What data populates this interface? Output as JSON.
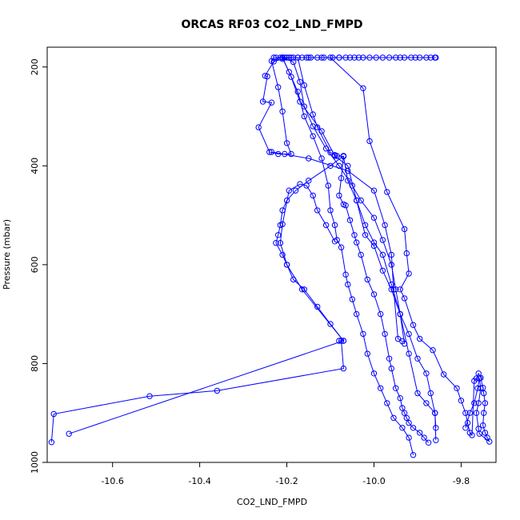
{
  "chart_data": {
    "type": "line",
    "title": "ORCAS RF03 CO2_LND_FMPD",
    "xlabel": "CO2_LND_FMPD",
    "ylabel": "Pressure (mbar)",
    "xlim": [
      -10.75,
      -9.72
    ],
    "ylim": [
      1000,
      160
    ],
    "y_inverted": true,
    "x_ticks": [
      -10.6,
      -10.4,
      -10.2,
      -10.0,
      -9.8
    ],
    "x_tick_labels": [
      "-10.6",
      "-10.4",
      "-10.2",
      "-10.0",
      "-9.8"
    ],
    "y_ticks": [
      200,
      400,
      600,
      800,
      1000
    ],
    "y_tick_labels": [
      "200",
      "400",
      "600",
      "800",
      "1000"
    ],
    "grid": false,
    "legend": "none",
    "color": "#0000ff",
    "marker": "open-circle",
    "series": [
      {
        "x": [
          -10.08,
          -10.12,
          -10.15,
          -10.19,
          -10.21,
          -10.23,
          -10.25,
          -10.245,
          -10.255,
          -10.235,
          -10.265,
          -10.24,
          -10.22,
          -10.205,
          -10.19,
          -10.2,
          -10.21,
          -10.22,
          -10.235,
          -10.215,
          -10.175,
          -10.16,
          -10.14,
          -10.13,
          -10.1,
          -10.09,
          -10.085,
          -10.07,
          -10.06,
          -10.04,
          -10.02,
          -10.0,
          -9.98,
          -9.96,
          -9.94,
          -9.92,
          -9.9,
          -9.88,
          -9.87,
          -9.86,
          -9.858
        ],
        "y": [
          181,
          181,
          181,
          181,
          184,
          189,
          218,
          219,
          270,
          272,
          322,
          372,
          376,
          376,
          376,
          354,
          290,
          241,
          188,
          181,
          181,
          237,
          296,
          322,
          373,
          378,
          380,
          381,
          430,
          470,
          540,
          562,
          612,
          650,
          700,
          740,
          790,
          820,
          860,
          900,
          955
        ]
      },
      {
        "x": [
          -10.2,
          -10.21,
          -10.19,
          -10.17,
          -10.12,
          -10.09,
          -10.06,
          -10.04,
          -10.02,
          -10.0,
          -9.98,
          -9.96,
          -9.94,
          -9.92,
          -9.9,
          -9.88,
          -9.86,
          -9.858
        ],
        "y": [
          181,
          181,
          220,
          270,
          330,
          380,
          400,
          470,
          520,
          555,
          580,
          640,
          700,
          780,
          860,
          880,
          900,
          930
        ]
      },
      {
        "x": [
          -10.225,
          -10.21,
          -10.195,
          -10.175,
          -10.16,
          -10.14,
          -10.12,
          -10.105,
          -10.1,
          -10.09,
          -10.085,
          -10.075,
          -10.065,
          -10.06,
          -10.05,
          -10.04,
          -10.025,
          -10.015,
          -10.0,
          -9.985,
          -9.97,
          -9.955,
          -9.935,
          -9.92,
          -9.91
        ],
        "y": [
          181,
          181,
          210,
          250,
          300,
          340,
          385,
          440,
          490,
          520,
          550,
          565,
          620,
          640,
          670,
          700,
          740,
          780,
          820,
          850,
          880,
          910,
          930,
          950,
          985
        ]
      },
      {
        "x": [
          -10.23,
          -10.21,
          -10.185,
          -10.17,
          -10.16,
          -10.14,
          -10.11,
          -10.08,
          -10.05,
          -10.03,
          -10.0,
          -9.98,
          -9.96,
          -9.95,
          -9.94,
          -9.93
        ],
        "y": [
          181,
          181,
          190,
          230,
          280,
          320,
          365,
          400,
          440,
          470,
          505,
          550,
          600,
          650,
          700,
          760
        ]
      },
      {
        "x": [
          -10.21,
          -10.205,
          -10.195,
          -10.185,
          -10.175,
          -10.165,
          -10.155,
          -10.145,
          -10.13,
          -10.115,
          -10.095,
          -10.08,
          -10.065,
          -10.055,
          -10.045,
          -10.035,
          -10.025,
          -10.01,
          -9.995,
          -9.98,
          -9.965,
          -9.95,
          -9.94,
          -9.93,
          -9.915,
          -9.905,
          -9.895,
          -9.88,
          -9.87,
          -9.86,
          -9.858
        ],
        "y": [
          181,
          181,
          181,
          181,
          181,
          181,
          181,
          181,
          181,
          181,
          181,
          181,
          181,
          181,
          181,
          181,
          181,
          181,
          181,
          181,
          181,
          181,
          181,
          181,
          181,
          181,
          181,
          181,
          181,
          181,
          181
        ]
      },
      {
        "x": [
          -10.1,
          -10.025,
          -10.01,
          -9.97,
          -9.93,
          -9.925,
          -9.92,
          -9.94,
          -9.93,
          -9.91,
          -9.895,
          -9.865,
          -9.84,
          -9.81,
          -9.8,
          -9.79,
          -9.785,
          -9.78,
          -9.775,
          -9.77,
          -9.765,
          -9.76,
          -9.755,
          -9.75,
          -9.748,
          -9.745,
          -9.748,
          -9.75,
          -9.745,
          -9.74,
          -9.735,
          -9.758,
          -9.76,
          -9.765,
          -9.76,
          -9.755,
          -9.758,
          -9.762,
          -9.77,
          -9.78,
          -9.79
        ],
        "y": [
          181,
          243,
          350,
          453,
          528,
          577,
          618,
          650,
          668,
          722,
          750,
          773,
          822,
          850,
          875,
          900,
          920,
          940,
          945,
          835,
          830,
          820,
          829,
          849,
          860,
          880,
          900,
          925,
          940,
          950,
          958,
          942,
          932,
          900,
          880,
          850,
          830,
          850,
          880,
          900,
          930
        ]
      },
      {
        "x": [
          -10.07,
          -10.075,
          -10.08,
          -10.07,
          -10.065,
          -10.055,
          -10.045,
          -10.04,
          -10.03,
          -10.015,
          -10.0,
          -9.985,
          -9.975,
          -9.965,
          -9.96,
          -9.95,
          -9.94,
          -9.935,
          -9.93,
          -9.925,
          -9.92,
          -9.91,
          -9.895,
          -9.885,
          -9.875
        ],
        "y": [
          380,
          425,
          460,
          478,
          480,
          510,
          540,
          555,
          580,
          630,
          660,
          700,
          740,
          790,
          810,
          850,
          870,
          890,
          900,
          910,
          920,
          930,
          940,
          950,
          960
        ]
      },
      {
        "x": [
          -10.07,
          -10.1,
          -10.15,
          -10.18,
          -10.2,
          -10.21,
          -10.215,
          -10.22,
          -10.225,
          -10.21,
          -10.2,
          -10.185,
          -10.16,
          -10.13,
          -10.1,
          -10.07,
          -10.08,
          -10.075,
          -10.07,
          -10.36,
          -10.515,
          -10.735,
          -10.74
        ],
        "y": [
          380,
          400,
          430,
          450,
          470,
          490,
          520,
          540,
          556,
          580,
          600,
          630,
          650,
          685,
          720,
          754,
          754,
          754,
          810,
          855,
          866,
          902,
          959
        ]
      },
      {
        "x": [
          -10.7,
          -10.07,
          -10.165,
          -10.2,
          -10.215,
          -10.21,
          -10.195,
          -10.17,
          -10.155,
          -10.14,
          -10.13,
          -10.11,
          -10.09
        ],
        "y": [
          942,
          754,
          650,
          600,
          556,
          518,
          450,
          437,
          440,
          460,
          490,
          520,
          553
        ]
      },
      {
        "x": [
          -10.235,
          -10.15,
          -10.06,
          -10.0,
          -9.975,
          -9.96,
          -9.955,
          -9.945,
          -9.935
        ],
        "y": [
          372,
          385,
          410,
          450,
          520,
          580,
          650,
          750,
          755
        ]
      }
    ]
  }
}
